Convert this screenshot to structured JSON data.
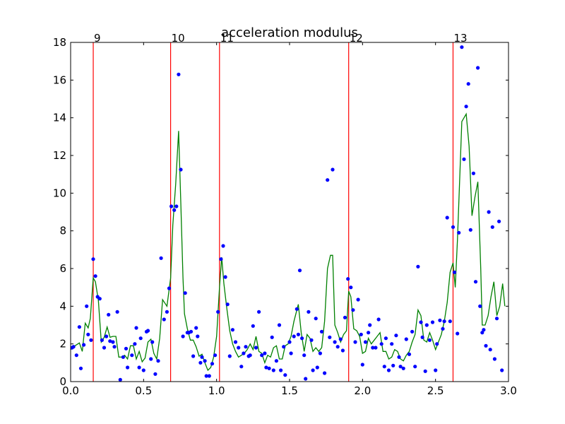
{
  "chart_data": {
    "type": "scatter",
    "title": "acceleration modulus",
    "xlabel": "",
    "ylabel": "",
    "xlim": [
      0.0,
      3.0
    ],
    "ylim": [
      0,
      18
    ],
    "xticks": [
      0.0,
      0.5,
      1.0,
      1.5,
      2.0,
      2.5,
      3.0
    ],
    "xtick_labels": [
      "0.0",
      "0.5",
      "1.0",
      "1.5",
      "2.0",
      "2.5",
      "3.0"
    ],
    "yticks": [
      0,
      2,
      4,
      6,
      8,
      10,
      12,
      14,
      16,
      18
    ],
    "ytick_labels": [
      "0",
      "2",
      "4",
      "6",
      "8",
      "10",
      "12",
      "14",
      "16",
      "18"
    ],
    "grid": false,
    "colors": {
      "points": "#0000ff",
      "smoothed": "#008000",
      "markers": "#ff0000"
    },
    "vertical_lines": [
      {
        "x": 0.155,
        "label": "9"
      },
      {
        "x": 0.685,
        "label": "10"
      },
      {
        "x": 1.02,
        "label": "11"
      },
      {
        "x": 1.905,
        "label": "12"
      },
      {
        "x": 2.62,
        "label": "13"
      }
    ],
    "points": [
      [
        0.01,
        1.8
      ],
      [
        0.02,
        1.85
      ],
      [
        0.04,
        1.4
      ],
      [
        0.06,
        2.9
      ],
      [
        0.07,
        0.7
      ],
      [
        0.09,
        1.95
      ],
      [
        0.11,
        4.0
      ],
      [
        0.12,
        2.5
      ],
      [
        0.14,
        2.2
      ],
      [
        0.155,
        6.5
      ],
      [
        0.17,
        5.6
      ],
      [
        0.185,
        4.5
      ],
      [
        0.2,
        4.4
      ],
      [
        0.215,
        2.2
      ],
      [
        0.23,
        1.8
      ],
      [
        0.245,
        2.4
      ],
      [
        0.26,
        3.55
      ],
      [
        0.27,
        2.15
      ],
      [
        0.29,
        2.1
      ],
      [
        0.3,
        1.85
      ],
      [
        0.32,
        3.7
      ],
      [
        0.34,
        0.1
      ],
      [
        0.36,
        1.3
      ],
      [
        0.38,
        1.75
      ],
      [
        0.39,
        0.75
      ],
      [
        0.42,
        1.4
      ],
      [
        0.44,
        2.0
      ],
      [
        0.45,
        2.85
      ],
      [
        0.47,
        0.75
      ],
      [
        0.48,
        2.3
      ],
      [
        0.5,
        0.6
      ],
      [
        0.52,
        2.65
      ],
      [
        0.53,
        2.7
      ],
      [
        0.55,
        1.2
      ],
      [
        0.56,
        2.1
      ],
      [
        0.58,
        0.4
      ],
      [
        0.6,
        1.1
      ],
      [
        0.62,
        6.55
      ],
      [
        0.64,
        3.3
      ],
      [
        0.66,
        3.7
      ],
      [
        0.675,
        4.95
      ],
      [
        0.69,
        9.3
      ],
      [
        0.71,
        9.1
      ],
      [
        0.725,
        9.3
      ],
      [
        0.74,
        16.3
      ],
      [
        0.755,
        11.25
      ],
      [
        0.77,
        2.4
      ],
      [
        0.785,
        4.7
      ],
      [
        0.8,
        2.6
      ],
      [
        0.81,
        2.6
      ],
      [
        0.825,
        2.65
      ],
      [
        0.84,
        1.35
      ],
      [
        0.86,
        2.85
      ],
      [
        0.87,
        2.4
      ],
      [
        0.89,
        1.0
      ],
      [
        0.9,
        1.3
      ],
      [
        0.92,
        1.1
      ],
      [
        0.93,
        0.3
      ],
      [
        0.95,
        0.3
      ],
      [
        0.97,
        0.95
      ],
      [
        0.99,
        1.4
      ],
      [
        1.01,
        3.7
      ],
      [
        1.03,
        6.5
      ],
      [
        1.045,
        7.2
      ],
      [
        1.06,
        5.55
      ],
      [
        1.075,
        4.1
      ],
      [
        1.09,
        1.35
      ],
      [
        1.11,
        2.75
      ],
      [
        1.13,
        2.1
      ],
      [
        1.15,
        1.8
      ],
      [
        1.17,
        0.8
      ],
      [
        1.185,
        1.5
      ],
      [
        1.2,
        1.85
      ],
      [
        1.22,
        1.35
      ],
      [
        1.23,
        1.4
      ],
      [
        1.25,
        2.95
      ],
      [
        1.27,
        1.8
      ],
      [
        1.29,
        3.7
      ],
      [
        1.31,
        1.4
      ],
      [
        1.33,
        1.5
      ],
      [
        1.34,
        0.75
      ],
      [
        1.36,
        0.7
      ],
      [
        1.38,
        2.35
      ],
      [
        1.39,
        0.6
      ],
      [
        1.41,
        1.1
      ],
      [
        1.43,
        3.0
      ],
      [
        1.44,
        0.6
      ],
      [
        1.46,
        1.85
      ],
      [
        1.47,
        0.35
      ],
      [
        1.5,
        2.1
      ],
      [
        1.51,
        1.5
      ],
      [
        1.53,
        2.4
      ],
      [
        1.55,
        3.85
      ],
      [
        1.56,
        2.5
      ],
      [
        1.57,
        5.9
      ],
      [
        1.585,
        2.3
      ],
      [
        1.6,
        1.4
      ],
      [
        1.61,
        0.15
      ],
      [
        1.63,
        3.7
      ],
      [
        1.65,
        2.2
      ],
      [
        1.66,
        0.6
      ],
      [
        1.68,
        3.35
      ],
      [
        1.69,
        0.75
      ],
      [
        1.71,
        1.5
      ],
      [
        1.72,
        2.65
      ],
      [
        1.74,
        0.45
      ],
      [
        1.76,
        10.7
      ],
      [
        1.775,
        2.35
      ],
      [
        1.795,
        11.25
      ],
      [
        1.81,
        2.1
      ],
      [
        1.83,
        1.85
      ],
      [
        1.85,
        2.25
      ],
      [
        1.865,
        1.65
      ],
      [
        1.88,
        3.4
      ],
      [
        1.9,
        5.45
      ],
      [
        1.92,
        5.0
      ],
      [
        1.935,
        3.8
      ],
      [
        1.95,
        2.1
      ],
      [
        1.97,
        4.35
      ],
      [
        1.99,
        2.5
      ],
      [
        2.0,
        0.9
      ],
      [
        2.02,
        2.1
      ],
      [
        2.04,
        2.6
      ],
      [
        2.05,
        3.0
      ],
      [
        2.07,
        1.8
      ],
      [
        2.09,
        1.8
      ],
      [
        2.11,
        3.3
      ],
      [
        2.13,
        2.0
      ],
      [
        2.15,
        0.8
      ],
      [
        2.16,
        2.3
      ],
      [
        2.18,
        0.6
      ],
      [
        2.2,
        2.0
      ],
      [
        2.21,
        0.85
      ],
      [
        2.23,
        2.45
      ],
      [
        2.25,
        1.3
      ],
      [
        2.26,
        0.8
      ],
      [
        2.28,
        0.7
      ],
      [
        2.3,
        2.25
      ],
      [
        2.32,
        1.45
      ],
      [
        2.34,
        2.65
      ],
      [
        2.36,
        0.8
      ],
      [
        2.38,
        6.1
      ],
      [
        2.4,
        3.15
      ],
      [
        2.41,
        2.35
      ],
      [
        2.43,
        0.55
      ],
      [
        2.44,
        3.0
      ],
      [
        2.46,
        2.2
      ],
      [
        2.48,
        3.15
      ],
      [
        2.5,
        0.6
      ],
      [
        2.51,
        2.0
      ],
      [
        2.53,
        3.25
      ],
      [
        2.55,
        2.8
      ],
      [
        2.56,
        3.2
      ],
      [
        2.58,
        8.7
      ],
      [
        2.6,
        3.2
      ],
      [
        2.62,
        8.2
      ],
      [
        2.63,
        5.8
      ],
      [
        2.65,
        2.55
      ],
      [
        2.66,
        7.9
      ],
      [
        2.68,
        17.75
      ],
      [
        2.695,
        11.8
      ],
      [
        2.71,
        14.6
      ],
      [
        2.725,
        15.8
      ],
      [
        2.74,
        8.05
      ],
      [
        2.76,
        11.05
      ],
      [
        2.775,
        5.3
      ],
      [
        2.79,
        16.65
      ],
      [
        2.805,
        4.0
      ],
      [
        2.82,
        2.6
      ],
      [
        2.83,
        2.75
      ],
      [
        2.845,
        1.9
      ],
      [
        2.865,
        9.0
      ],
      [
        2.875,
        1.7
      ],
      [
        2.89,
        8.2
      ],
      [
        2.905,
        1.2
      ],
      [
        2.92,
        3.35
      ],
      [
        2.935,
        8.5
      ],
      [
        2.955,
        0.6
      ]
    ],
    "smoothed": [
      [
        0.0,
        1.7
      ],
      [
        0.03,
        1.9
      ],
      [
        0.06,
        2.05
      ],
      [
        0.08,
        1.6
      ],
      [
        0.1,
        3.1
      ],
      [
        0.12,
        2.85
      ],
      [
        0.135,
        3.35
      ],
      [
        0.155,
        5.5
      ],
      [
        0.17,
        5.3
      ],
      [
        0.19,
        4.3
      ],
      [
        0.21,
        2.1
      ],
      [
        0.23,
        2.35
      ],
      [
        0.25,
        2.9
      ],
      [
        0.27,
        2.35
      ],
      [
        0.29,
        2.4
      ],
      [
        0.31,
        2.4
      ],
      [
        0.33,
        1.3
      ],
      [
        0.35,
        1.3
      ],
      [
        0.37,
        1.4
      ],
      [
        0.39,
        1.2
      ],
      [
        0.41,
        1.9
      ],
      [
        0.43,
        1.9
      ],
      [
        0.45,
        1.2
      ],
      [
        0.47,
        1.6
      ],
      [
        0.49,
        1.05
      ],
      [
        0.51,
        1.25
      ],
      [
        0.53,
        2.1
      ],
      [
        0.55,
        2.25
      ],
      [
        0.57,
        1.5
      ],
      [
        0.59,
        1.2
      ],
      [
        0.61,
        2.3
      ],
      [
        0.63,
        4.35
      ],
      [
        0.66,
        4.0
      ],
      [
        0.685,
        5.5
      ],
      [
        0.7,
        8.3
      ],
      [
        0.72,
        10.5
      ],
      [
        0.74,
        13.3
      ],
      [
        0.755,
        9.5
      ],
      [
        0.77,
        5.5
      ],
      [
        0.78,
        3.6
      ],
      [
        0.8,
        2.8
      ],
      [
        0.82,
        2.2
      ],
      [
        0.84,
        2.2
      ],
      [
        0.86,
        1.85
      ],
      [
        0.88,
        1.35
      ],
      [
        0.9,
        1.45
      ],
      [
        0.92,
        1.0
      ],
      [
        0.94,
        0.6
      ],
      [
        0.96,
        0.75
      ],
      [
        0.98,
        1.3
      ],
      [
        1.0,
        2.4
      ],
      [
        1.02,
        5.0
      ],
      [
        1.035,
        6.6
      ],
      [
        1.05,
        5.2
      ],
      [
        1.07,
        3.9
      ],
      [
        1.09,
        2.7
      ],
      [
        1.11,
        2.0
      ],
      [
        1.13,
        1.6
      ],
      [
        1.15,
        1.3
      ],
      [
        1.17,
        1.4
      ],
      [
        1.19,
        1.5
      ],
      [
        1.21,
        1.7
      ],
      [
        1.23,
        2.0
      ],
      [
        1.25,
        1.7
      ],
      [
        1.27,
        2.4
      ],
      [
        1.29,
        1.6
      ],
      [
        1.31,
        1.5
      ],
      [
        1.33,
        1.0
      ],
      [
        1.35,
        1.4
      ],
      [
        1.37,
        1.3
      ],
      [
        1.39,
        1.8
      ],
      [
        1.41,
        1.9
      ],
      [
        1.43,
        1.2
      ],
      [
        1.45,
        1.2
      ],
      [
        1.47,
        1.9
      ],
      [
        1.49,
        2.0
      ],
      [
        1.51,
        2.4
      ],
      [
        1.53,
        3.2
      ],
      [
        1.56,
        4.1
      ],
      [
        1.58,
        2.6
      ],
      [
        1.6,
        1.6
      ],
      [
        1.62,
        2.5
      ],
      [
        1.64,
        2.3
      ],
      [
        1.66,
        1.6
      ],
      [
        1.68,
        1.8
      ],
      [
        1.7,
        1.6
      ],
      [
        1.72,
        1.8
      ],
      [
        1.74,
        3.2
      ],
      [
        1.76,
        6.0
      ],
      [
        1.78,
        6.7
      ],
      [
        1.795,
        6.7
      ],
      [
        1.81,
        3.0
      ],
      [
        1.83,
        2.6
      ],
      [
        1.85,
        2.1
      ],
      [
        1.87,
        2.5
      ],
      [
        1.89,
        2.7
      ],
      [
        1.905,
        4.8
      ],
      [
        1.92,
        4.5
      ],
      [
        1.94,
        2.8
      ],
      [
        1.96,
        2.7
      ],
      [
        1.98,
        2.4
      ],
      [
        2.0,
        1.5
      ],
      [
        2.02,
        1.6
      ],
      [
        2.04,
        2.3
      ],
      [
        2.06,
        2.0
      ],
      [
        2.08,
        2.2
      ],
      [
        2.1,
        2.4
      ],
      [
        2.12,
        2.6
      ],
      [
        2.14,
        1.6
      ],
      [
        2.16,
        1.6
      ],
      [
        2.18,
        1.2
      ],
      [
        2.2,
        1.3
      ],
      [
        2.22,
        1.7
      ],
      [
        2.24,
        1.6
      ],
      [
        2.26,
        1.2
      ],
      [
        2.28,
        1.1
      ],
      [
        2.3,
        1.4
      ],
      [
        2.32,
        1.6
      ],
      [
        2.34,
        2.1
      ],
      [
        2.36,
        2.5
      ],
      [
        2.38,
        3.8
      ],
      [
        2.4,
        3.5
      ],
      [
        2.42,
        2.2
      ],
      [
        2.44,
        2.1
      ],
      [
        2.46,
        2.6
      ],
      [
        2.48,
        2.2
      ],
      [
        2.5,
        1.7
      ],
      [
        2.52,
        2.1
      ],
      [
        2.54,
        2.5
      ],
      [
        2.56,
        3.2
      ],
      [
        2.58,
        4.2
      ],
      [
        2.6,
        5.8
      ],
      [
        2.62,
        6.3
      ],
      [
        2.635,
        5.0
      ],
      [
        2.65,
        7.5
      ],
      [
        2.68,
        13.8
      ],
      [
        2.71,
        14.2
      ],
      [
        2.73,
        12.5
      ],
      [
        2.75,
        8.8
      ],
      [
        2.77,
        9.8
      ],
      [
        2.79,
        10.6
      ],
      [
        2.81,
        6.0
      ],
      [
        2.82,
        3.0
      ],
      [
        2.84,
        3.0
      ],
      [
        2.86,
        3.5
      ],
      [
        2.88,
        4.5
      ],
      [
        2.9,
        5.3
      ],
      [
        2.92,
        3.5
      ],
      [
        2.94,
        4.0
      ],
      [
        2.96,
        5.2
      ],
      [
        2.975,
        4.0
      ]
    ]
  }
}
